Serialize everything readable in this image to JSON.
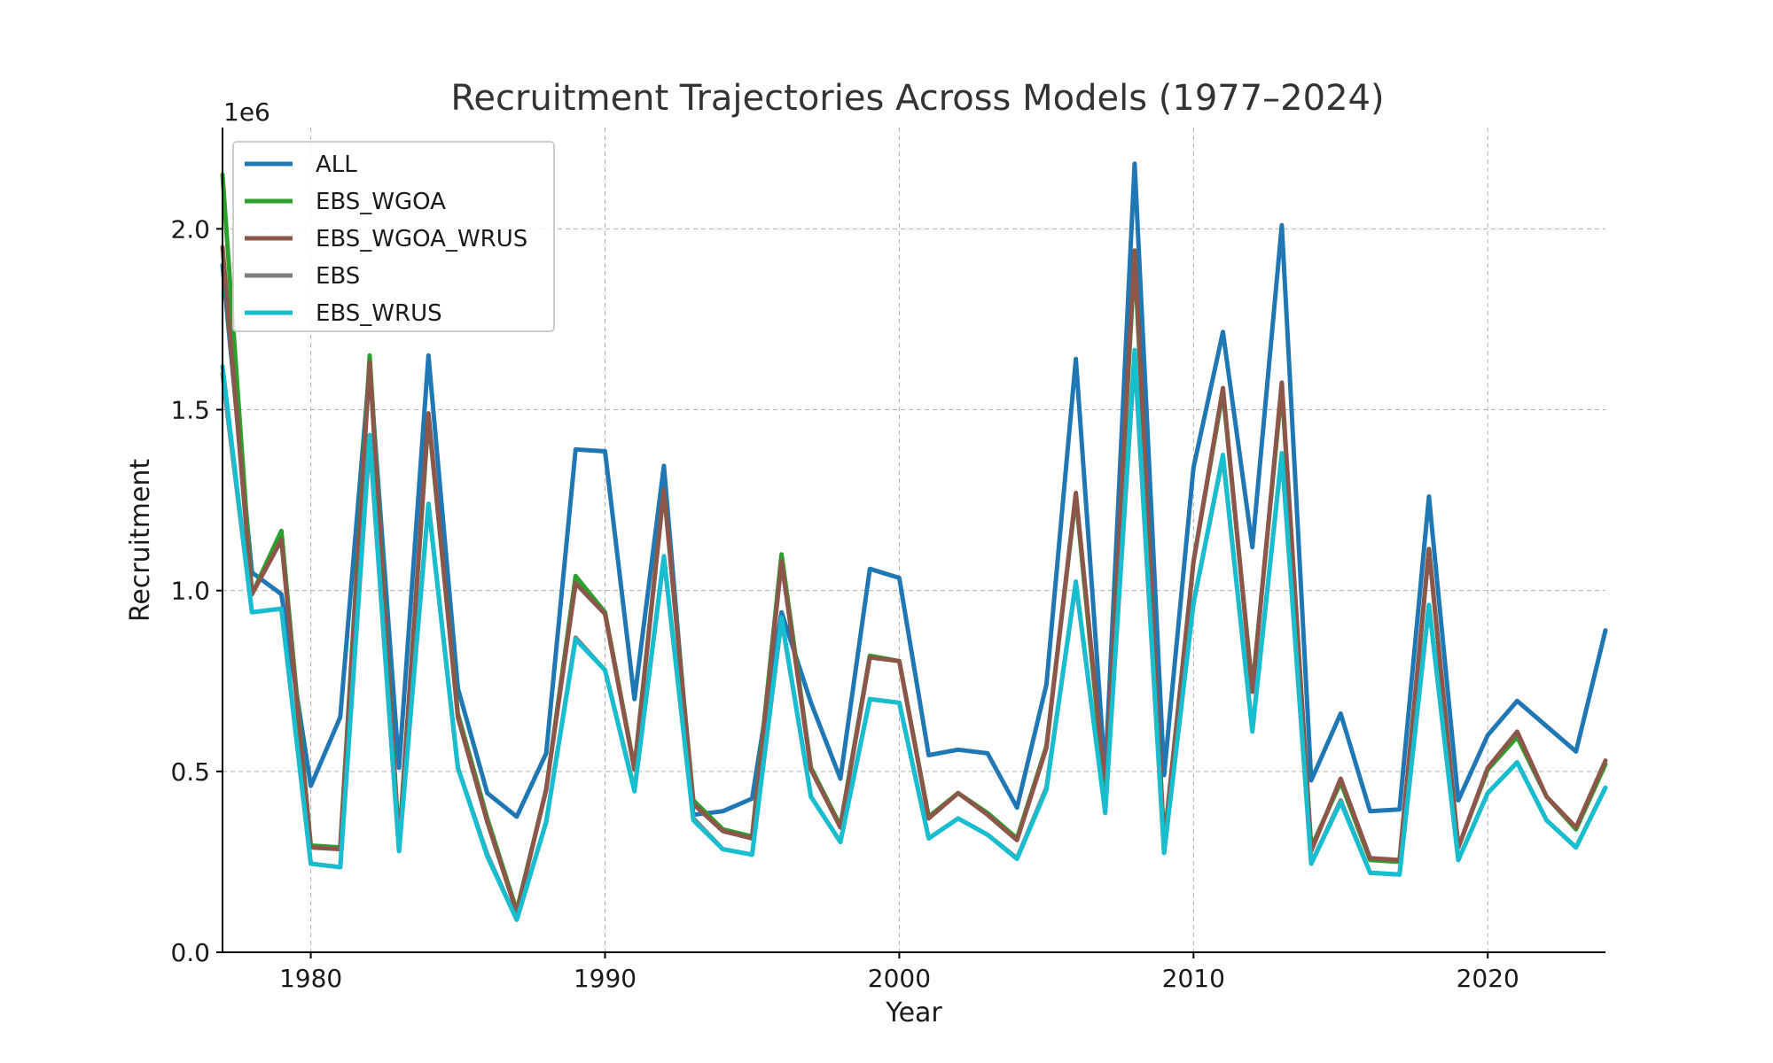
{
  "chart_data": {
    "type": "line",
    "title": "Recruitment Trajectories Across Models (1977–2024)",
    "xlabel": "Year",
    "ylabel": "Recruitment",
    "y_offset_label": "1e6",
    "xlim": [
      1977,
      2024
    ],
    "ylim": [
      0,
      2280000
    ],
    "x_ticks": [
      1980,
      1990,
      2000,
      2010,
      2020
    ],
    "y_ticks": [
      0,
      500000,
      1000000,
      1500000,
      2000000
    ],
    "y_tick_labels": [
      "0.0",
      "0.5",
      "1.0",
      "1.5",
      "2.0"
    ],
    "grid": true,
    "legend_position": "upper-left",
    "x": [
      1977,
      1978,
      1979,
      1980,
      1981,
      1982,
      1983,
      1984,
      1985,
      1986,
      1987,
      1988,
      1989,
      1990,
      1991,
      1992,
      1993,
      1994,
      1995,
      1996,
      1997,
      1998,
      1999,
      2000,
      2001,
      2002,
      2003,
      2004,
      2005,
      2006,
      2007,
      2008,
      2009,
      2010,
      2011,
      2012,
      2013,
      2014,
      2015,
      2016,
      2017,
      2018,
      2019,
      2020,
      2021,
      2022,
      2023,
      2024
    ],
    "series": [
      {
        "name": "ALL",
        "color": "#1f77b4",
        "values": [
          1900000,
          1050000,
          990000,
          460000,
          650000,
          1620000,
          510000,
          1650000,
          730000,
          440000,
          375000,
          550000,
          1390000,
          1385000,
          700000,
          1345000,
          380000,
          390000,
          425000,
          940000,
          690000,
          480000,
          1060000,
          1035000,
          545000,
          560000,
          550000,
          400000,
          740000,
          1640000,
          490000,
          2180000,
          490000,
          1340000,
          1715000,
          1120000,
          2010000,
          475000,
          660000,
          390000,
          395000,
          1260000,
          420000,
          600000,
          695000,
          625000,
          555000,
          890000
        ]
      },
      {
        "name": "EBS_WGOA",
        "color": "#2ca02c",
        "values": [
          2150000,
          990000,
          1165000,
          295000,
          290000,
          1650000,
          300000,
          1480000,
          660000,
          370000,
          115000,
          450000,
          1040000,
          940000,
          510000,
          1280000,
          420000,
          340000,
          320000,
          1100000,
          510000,
          350000,
          820000,
          805000,
          375000,
          440000,
          385000,
          315000,
          570000,
          1260000,
          430000,
          1920000,
          300000,
          1080000,
          1550000,
          730000,
          1560000,
          290000,
          470000,
          255000,
          250000,
          1115000,
          290000,
          505000,
          595000,
          430000,
          340000,
          520000
        ]
      },
      {
        "name": "EBS_WGOA_WRUS",
        "color": "#8c564b",
        "values": [
          1950000,
          990000,
          1140000,
          290000,
          285000,
          1630000,
          295000,
          1490000,
          650000,
          360000,
          110000,
          450000,
          1020000,
          935000,
          505000,
          1280000,
          410000,
          335000,
          315000,
          1080000,
          505000,
          345000,
          815000,
          805000,
          370000,
          440000,
          380000,
          310000,
          565000,
          1270000,
          450000,
          1940000,
          300000,
          1080000,
          1560000,
          720000,
          1575000,
          280000,
          480000,
          260000,
          255000,
          1115000,
          290000,
          510000,
          610000,
          430000,
          345000,
          530000
        ]
      },
      {
        "name": "EBS",
        "color": "#7f7f7f",
        "values": [
          1600000,
          940000,
          950000,
          245000,
          235000,
          1420000,
          280000,
          1240000,
          510000,
          270000,
          90000,
          360000,
          870000,
          780000,
          450000,
          1090000,
          370000,
          285000,
          270000,
          920000,
          430000,
          305000,
          700000,
          690000,
          315000,
          370000,
          325000,
          260000,
          455000,
          1020000,
          390000,
          1650000,
          275000,
          965000,
          1370000,
          615000,
          1375000,
          245000,
          420000,
          220000,
          215000,
          960000,
          255000,
          440000,
          525000,
          365000,
          290000,
          455000
        ]
      },
      {
        "name": "EBS_WRUS",
        "color": "#17becf",
        "values": [
          1620000,
          940000,
          950000,
          245000,
          235000,
          1430000,
          280000,
          1240000,
          510000,
          265000,
          90000,
          360000,
          865000,
          780000,
          445000,
          1095000,
          365000,
          285000,
          270000,
          925000,
          430000,
          305000,
          700000,
          690000,
          315000,
          370000,
          325000,
          258000,
          450000,
          1025000,
          385000,
          1665000,
          275000,
          965000,
          1375000,
          610000,
          1380000,
          245000,
          415000,
          220000,
          215000,
          960000,
          255000,
          440000,
          525000,
          365000,
          290000,
          455000
        ]
      }
    ]
  }
}
